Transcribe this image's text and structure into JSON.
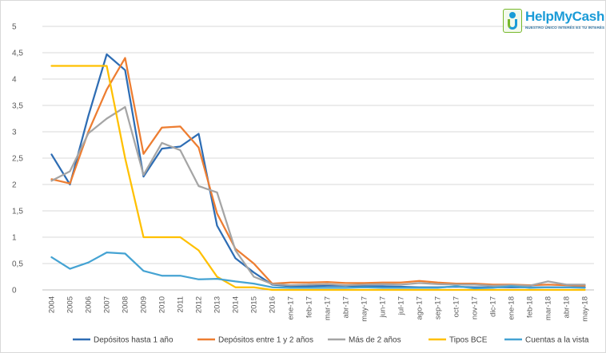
{
  "logo": {
    "brand": "HelpMyCash",
    "tagline": "NUESTRO ÚNICO INTERÉS ES TU INTERÉS"
  },
  "chart_data": {
    "type": "line",
    "title": "",
    "xlabel": "",
    "ylabel": "",
    "ylim": [
      0,
      5
    ],
    "yticks": [
      "0",
      "0,5",
      "1",
      "1,5",
      "2",
      "2,5",
      "3",
      "3,5",
      "4",
      "4,5",
      "5"
    ],
    "grid": true,
    "legend": "bottom",
    "categories": [
      "2004",
      "2005",
      "2006",
      "2007",
      "2008",
      "2009",
      "2010",
      "2011",
      "2012",
      "2013",
      "2014",
      "2015",
      "2016",
      "ene-17",
      "feb-17",
      "mar-17",
      "abr-17",
      "may-17",
      "jun-17",
      "jul-17",
      "ago-17",
      "sep-17",
      "oct-17",
      "nov-17",
      "dic-17",
      "ene-18",
      "feb-18",
      "mar-18",
      "abr-18",
      "may-18"
    ],
    "series": [
      {
        "name": "Depósitos hasta 1 año",
        "color": "#2e6db4",
        "values": [
          2.57,
          2.0,
          3.3,
          4.47,
          4.17,
          2.15,
          2.68,
          2.72,
          2.96,
          1.22,
          0.6,
          0.33,
          0.1,
          0.07,
          0.07,
          0.08,
          0.08,
          0.07,
          0.07,
          0.06,
          0.05,
          0.05,
          0.06,
          0.05,
          0.05,
          0.05,
          0.05,
          0.05,
          0.05,
          0.05
        ]
      },
      {
        "name": "Depósitos entre 1 y 2 años",
        "color": "#ed7d31",
        "values": [
          2.1,
          2.02,
          3.0,
          3.8,
          4.4,
          2.58,
          3.08,
          3.1,
          2.7,
          1.45,
          0.78,
          0.5,
          0.12,
          0.14,
          0.14,
          0.15,
          0.13,
          0.13,
          0.14,
          0.14,
          0.17,
          0.14,
          0.12,
          0.12,
          0.1,
          0.1,
          0.09,
          0.1,
          0.09,
          0.08
        ]
      },
      {
        "name": "Más de 2 años",
        "color": "#a5a5a5",
        "values": [
          2.07,
          2.25,
          2.97,
          3.25,
          3.47,
          2.18,
          2.79,
          2.65,
          1.97,
          1.85,
          0.75,
          0.25,
          0.11,
          0.09,
          0.1,
          0.11,
          0.09,
          0.1,
          0.11,
          0.1,
          0.13,
          0.11,
          0.1,
          0.1,
          0.08,
          0.09,
          0.08,
          0.16,
          0.1,
          0.1
        ]
      },
      {
        "name": "Tipos BCE",
        "color": "#ffc000",
        "values": [
          4.25,
          4.25,
          4.25,
          4.25,
          2.5,
          1.0,
          1.0,
          1.0,
          0.75,
          0.25,
          0.05,
          0.05,
          0.0,
          0.0,
          0.0,
          0.0,
          0.0,
          0.0,
          0.0,
          0.0,
          0.0,
          0.0,
          0.0,
          0.0,
          0.0,
          0.0,
          0.0,
          0.0,
          0.0,
          0.0
        ]
      },
      {
        "name": "Cuentas a la vista",
        "color": "#45a3d3",
        "values": [
          0.62,
          0.4,
          0.52,
          0.71,
          0.69,
          0.36,
          0.27,
          0.27,
          0.2,
          0.21,
          0.16,
          0.12,
          0.05,
          0.04,
          0.04,
          0.04,
          0.04,
          0.05,
          0.04,
          0.04,
          0.04,
          0.04,
          0.07,
          0.03,
          0.04,
          0.07,
          0.04,
          0.05,
          0.05,
          0.04
        ]
      }
    ]
  }
}
